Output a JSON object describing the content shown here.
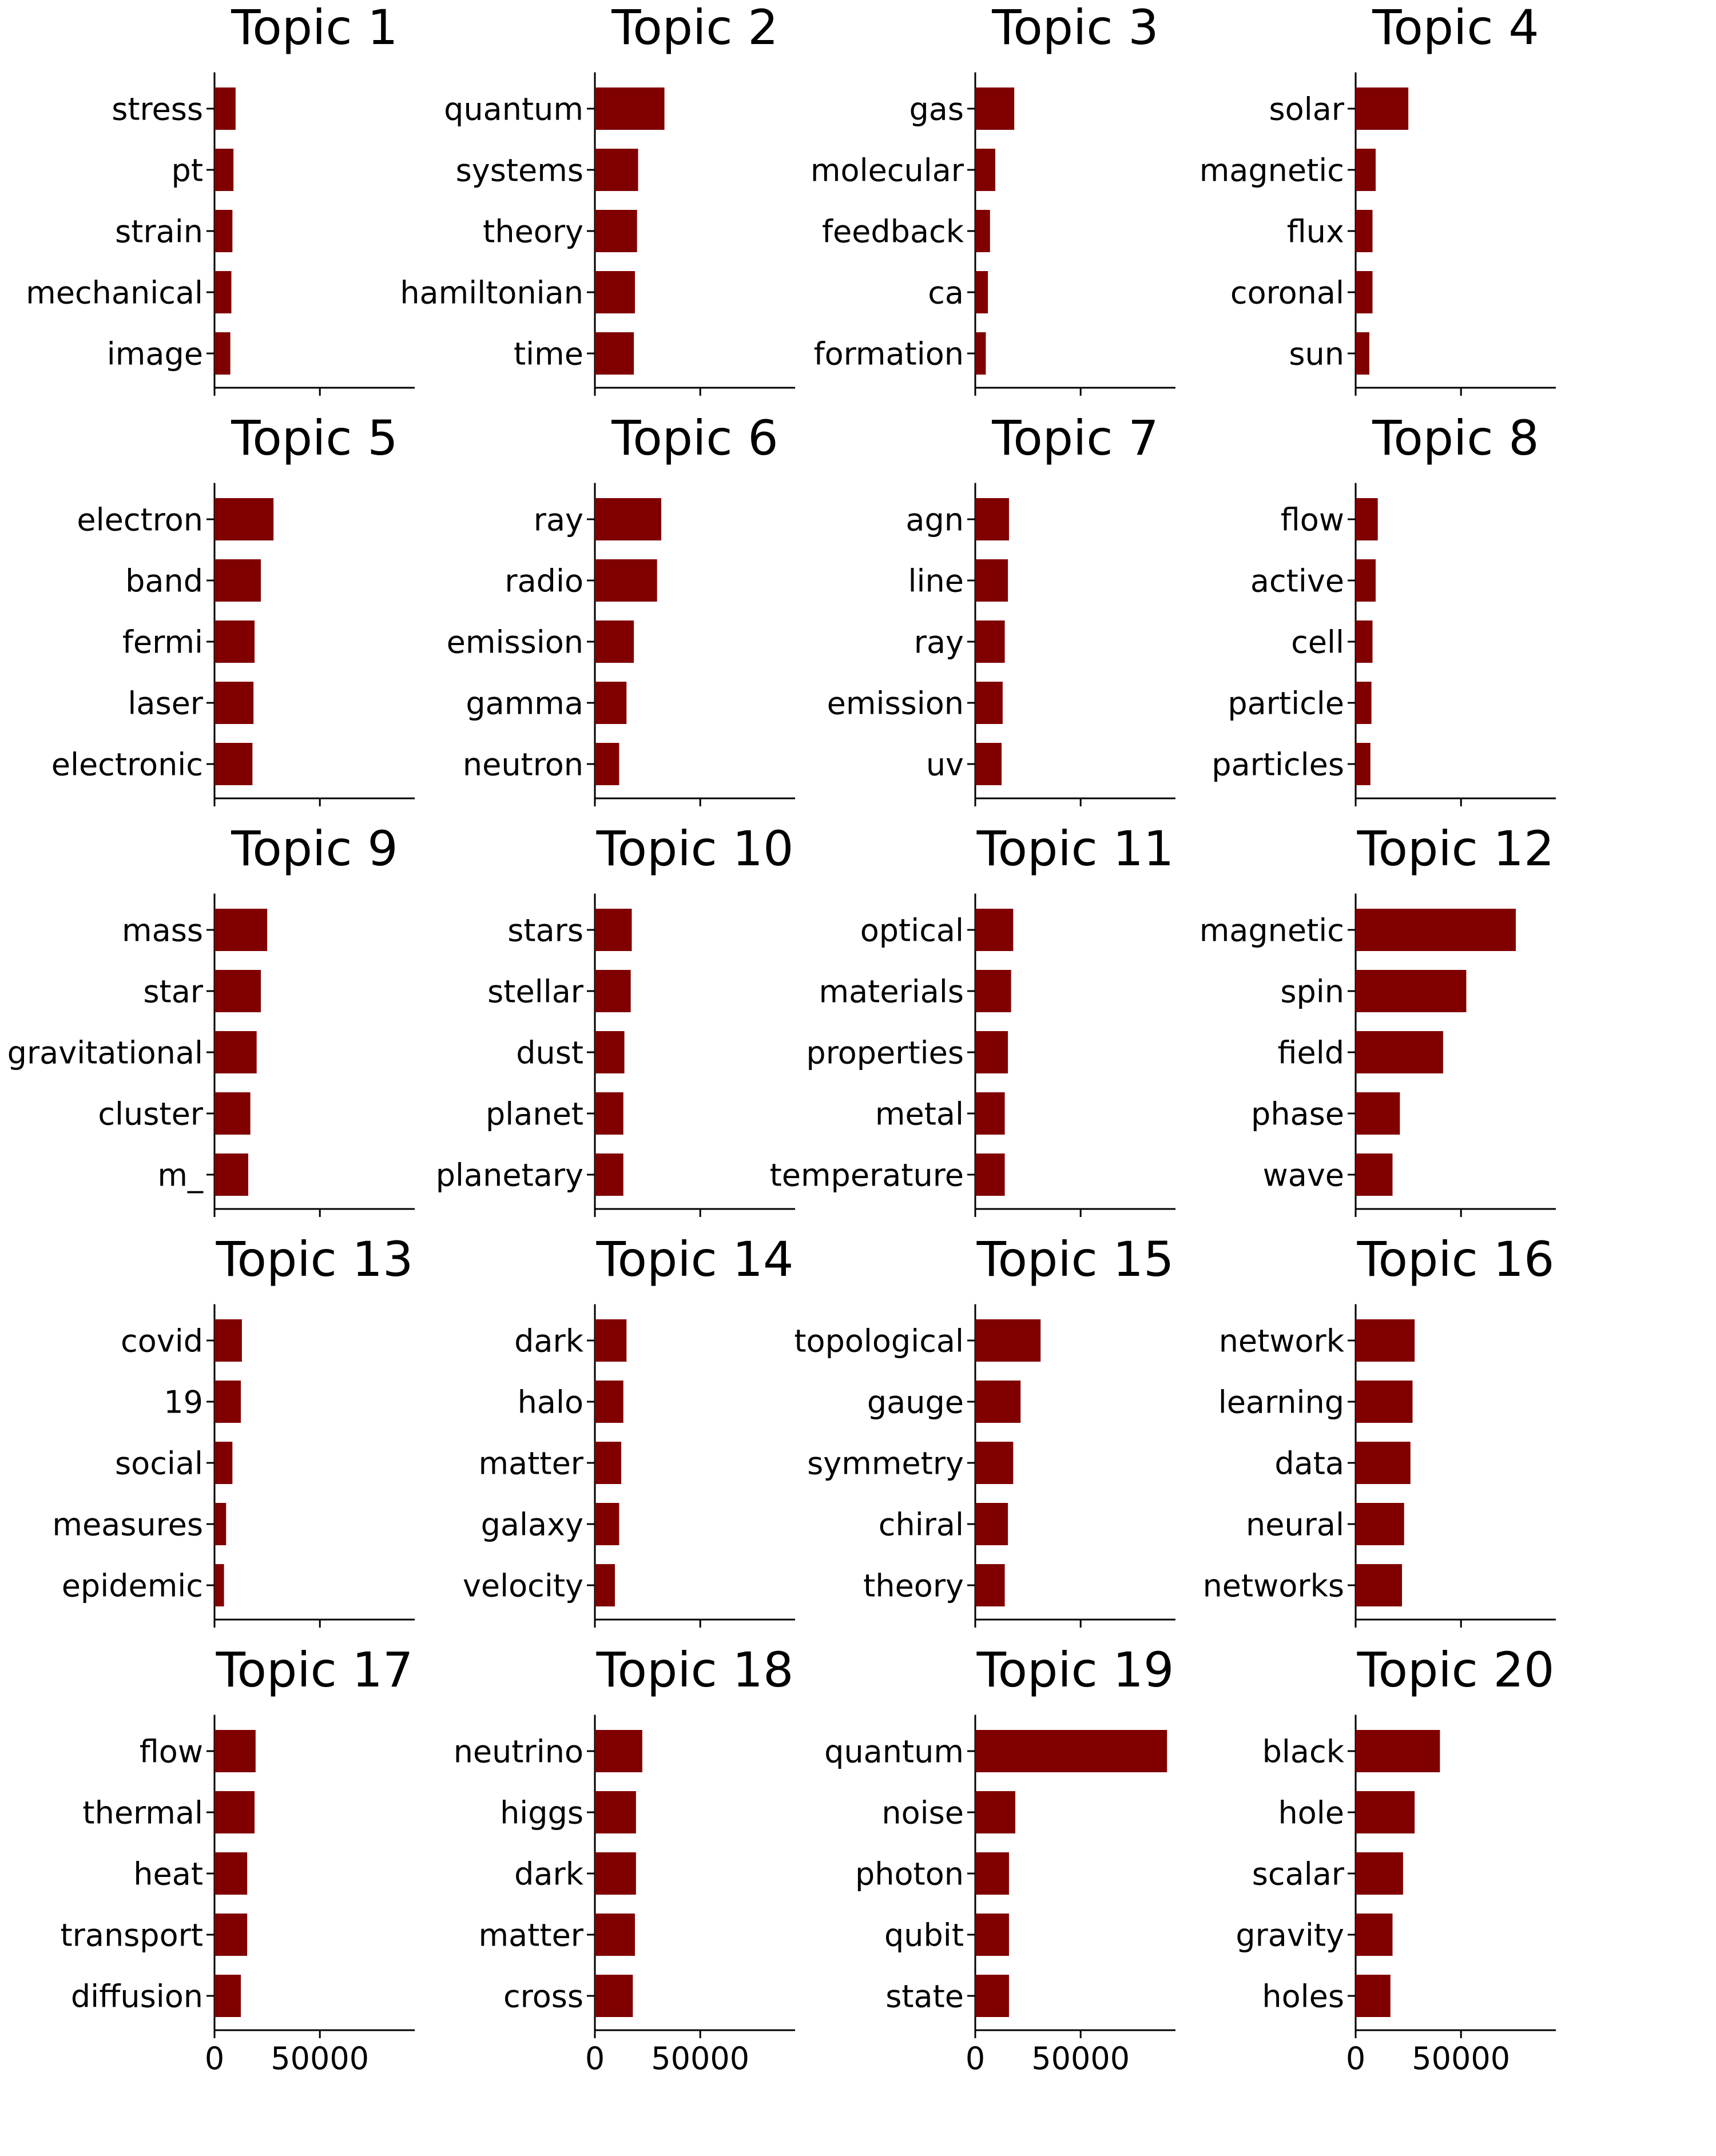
{
  "figure": {
    "bar_color": "#800000",
    "axis_color": "#000000",
    "background": "#ffffff",
    "layout": "5 rows x 4 columns grid of horizontal bar charts, shared x-axis scale, x tick labels only on bottom row"
  },
  "chart_data": [
    {
      "type": "bar",
      "orientation": "horizontal",
      "title": "Topic 1",
      "categories": [
        "stress",
        "pt",
        "strain",
        "mechanical",
        "image"
      ],
      "values": [
        10000,
        9000,
        8500,
        8000,
        7500
      ],
      "xlim": [
        0,
        95000
      ],
      "xticks": [
        0,
        50000
      ],
      "show_xticklabels": false
    },
    {
      "type": "bar",
      "orientation": "horizontal",
      "title": "Topic 2",
      "categories": [
        "quantum",
        "systems",
        "theory",
        "hamiltonian",
        "time"
      ],
      "values": [
        33000,
        20500,
        20000,
        19000,
        18500
      ],
      "xlim": [
        0,
        95000
      ],
      "xticks": [
        0,
        50000
      ],
      "show_xticklabels": false
    },
    {
      "type": "bar",
      "orientation": "horizontal",
      "title": "Topic 3",
      "categories": [
        "gas",
        "molecular",
        "feedback",
        "ca",
        "formation"
      ],
      "values": [
        18500,
        9500,
        7000,
        6000,
        5000
      ],
      "xlim": [
        0,
        95000
      ],
      "xticks": [
        0,
        50000
      ],
      "show_xticklabels": false
    },
    {
      "type": "bar",
      "orientation": "horizontal",
      "title": "Topic 4",
      "categories": [
        "solar",
        "magnetic",
        "flux",
        "coronal",
        "sun"
      ],
      "values": [
        25000,
        9500,
        8000,
        8000,
        6500
      ],
      "xlim": [
        0,
        95000
      ],
      "xticks": [
        0,
        50000
      ],
      "show_xticklabels": false
    },
    {
      "type": "bar",
      "orientation": "horizontal",
      "title": "Topic 5",
      "categories": [
        "electron",
        "band",
        "fermi",
        "laser",
        "electronic"
      ],
      "values": [
        28000,
        22000,
        19000,
        18500,
        18000
      ],
      "xlim": [
        0,
        95000
      ],
      "xticks": [
        0,
        50000
      ],
      "show_xticklabels": false
    },
    {
      "type": "bar",
      "orientation": "horizontal",
      "title": "Topic 6",
      "categories": [
        "ray",
        "radio",
        "emission",
        "gamma",
        "neutron"
      ],
      "values": [
        31500,
        29500,
        18500,
        15000,
        11500
      ],
      "xlim": [
        0,
        95000
      ],
      "xticks": [
        0,
        50000
      ],
      "show_xticklabels": false
    },
    {
      "type": "bar",
      "orientation": "horizontal",
      "title": "Topic 7",
      "categories": [
        "agn",
        "line",
        "ray",
        "emission",
        "uv"
      ],
      "values": [
        16000,
        15500,
        14000,
        13000,
        12500
      ],
      "xlim": [
        0,
        95000
      ],
      "xticks": [
        0,
        50000
      ],
      "show_xticklabels": false
    },
    {
      "type": "bar",
      "orientation": "horizontal",
      "title": "Topic 8",
      "categories": [
        "flow",
        "active",
        "cell",
        "particle",
        "particles"
      ],
      "values": [
        10500,
        9500,
        8000,
        7500,
        7000
      ],
      "xlim": [
        0,
        95000
      ],
      "xticks": [
        0,
        50000
      ],
      "show_xticklabels": false
    },
    {
      "type": "bar",
      "orientation": "horizontal",
      "title": "Topic 9",
      "categories": [
        "mass",
        "star",
        "gravitational",
        "cluster",
        "m_"
      ],
      "values": [
        25000,
        22000,
        20000,
        17000,
        16000
      ],
      "xlim": [
        0,
        95000
      ],
      "xticks": [
        0,
        50000
      ],
      "show_xticklabels": false
    },
    {
      "type": "bar",
      "orientation": "horizontal",
      "title": "Topic 10",
      "categories": [
        "stars",
        "stellar",
        "dust",
        "planet",
        "planetary"
      ],
      "values": [
        17500,
        17000,
        14000,
        13500,
        13500
      ],
      "xlim": [
        0,
        95000
      ],
      "xticks": [
        0,
        50000
      ],
      "show_xticklabels": false
    },
    {
      "type": "bar",
      "orientation": "horizontal",
      "title": "Topic 11",
      "categories": [
        "optical",
        "materials",
        "properties",
        "metal",
        "temperature"
      ],
      "values": [
        18000,
        17000,
        15500,
        14000,
        14000
      ],
      "xlim": [
        0,
        95000
      ],
      "xticks": [
        0,
        50000
      ],
      "show_xticklabels": false
    },
    {
      "type": "bar",
      "orientation": "horizontal",
      "title": "Topic 12",
      "categories": [
        "magnetic",
        "spin",
        "field",
        "phase",
        "wave"
      ],
      "values": [
        76000,
        52500,
        41500,
        21000,
        17500
      ],
      "xlim": [
        0,
        95000
      ],
      "xticks": [
        0,
        50000
      ],
      "show_xticklabels": false
    },
    {
      "type": "bar",
      "orientation": "horizontal",
      "title": "Topic 13",
      "categories": [
        "covid",
        "19",
        "social",
        "measures",
        "epidemic"
      ],
      "values": [
        13000,
        12500,
        8500,
        5500,
        4500
      ],
      "xlim": [
        0,
        95000
      ],
      "xticks": [
        0,
        50000
      ],
      "show_xticklabels": false
    },
    {
      "type": "bar",
      "orientation": "horizontal",
      "title": "Topic 14",
      "categories": [
        "dark",
        "halo",
        "matter",
        "galaxy",
        "velocity"
      ],
      "values": [
        15000,
        13500,
        12500,
        11500,
        9500
      ],
      "xlim": [
        0,
        95000
      ],
      "xticks": [
        0,
        50000
      ],
      "show_xticklabels": false
    },
    {
      "type": "bar",
      "orientation": "horizontal",
      "title": "Topic 15",
      "categories": [
        "topological",
        "gauge",
        "symmetry",
        "chiral",
        "theory"
      ],
      "values": [
        31000,
        21500,
        18000,
        15500,
        14000
      ],
      "xlim": [
        0,
        95000
      ],
      "xticks": [
        0,
        50000
      ],
      "show_xticklabels": false
    },
    {
      "type": "bar",
      "orientation": "horizontal",
      "title": "Topic 16",
      "categories": [
        "network",
        "learning",
        "data",
        "neural",
        "networks"
      ],
      "values": [
        28000,
        27000,
        26000,
        23000,
        22000
      ],
      "xlim": [
        0,
        95000
      ],
      "xticks": [
        0,
        50000
      ],
      "show_xticklabels": false
    },
    {
      "type": "bar",
      "orientation": "horizontal",
      "title": "Topic 17",
      "categories": [
        "flow",
        "thermal",
        "heat",
        "transport",
        "diffusion"
      ],
      "values": [
        19500,
        19000,
        15500,
        15500,
        12500
      ],
      "xlim": [
        0,
        95000
      ],
      "xticks": [
        0,
        50000
      ],
      "show_xticklabels": true
    },
    {
      "type": "bar",
      "orientation": "horizontal",
      "title": "Topic 18",
      "categories": [
        "neutrino",
        "higgs",
        "dark",
        "matter",
        "cross"
      ],
      "values": [
        22500,
        19500,
        19500,
        19000,
        18000
      ],
      "xlim": [
        0,
        95000
      ],
      "xticks": [
        0,
        50000
      ],
      "show_xticklabels": true
    },
    {
      "type": "bar",
      "orientation": "horizontal",
      "title": "Topic 19",
      "categories": [
        "quantum",
        "noise",
        "photon",
        "qubit",
        "state"
      ],
      "values": [
        91000,
        19000,
        16000,
        16000,
        16000
      ],
      "xlim": [
        0,
        95000
      ],
      "xticks": [
        0,
        50000
      ],
      "show_xticklabels": true
    },
    {
      "type": "bar",
      "orientation": "horizontal",
      "title": "Topic 20",
      "categories": [
        "black",
        "hole",
        "scalar",
        "gravity",
        "holes"
      ],
      "values": [
        40000,
        28000,
        22500,
        17500,
        16500
      ],
      "xlim": [
        0,
        95000
      ],
      "xticks": [
        0,
        50000
      ],
      "show_xticklabels": true
    }
  ]
}
